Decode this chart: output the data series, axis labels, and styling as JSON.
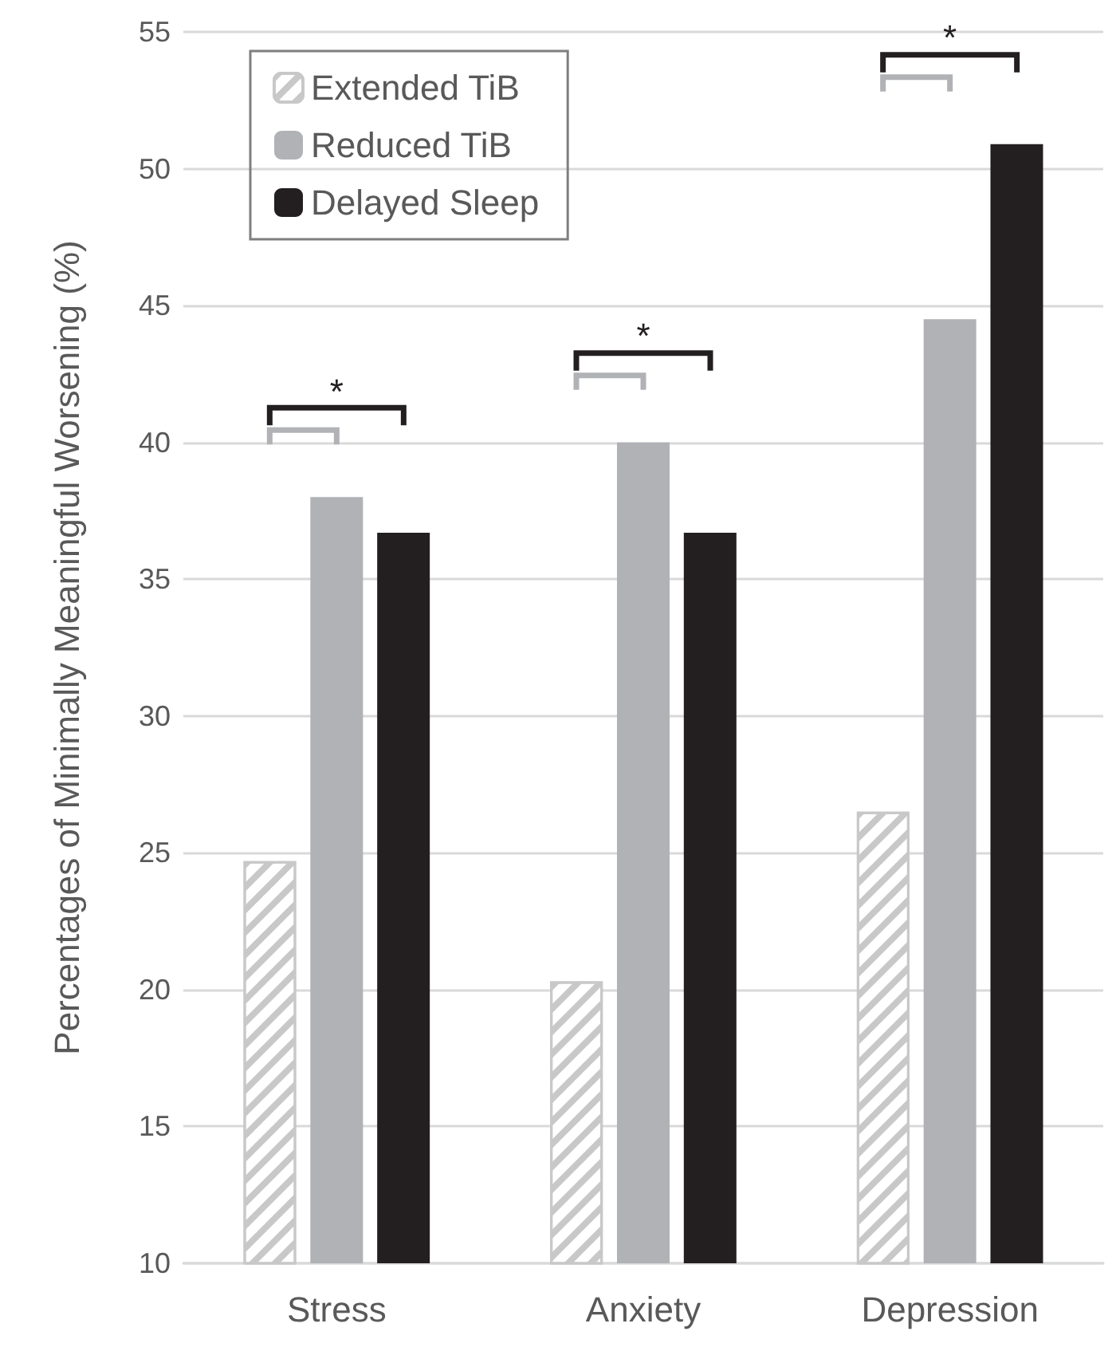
{
  "chart_data": {
    "type": "bar",
    "ylabel": "Percentages of Minimally Meaningful Worsening (%)",
    "categories": [
      "Stress",
      "Anxiety",
      "Depression"
    ],
    "series": [
      {
        "name": "Extended TiB",
        "color": "#c8c8c8",
        "values": [
          24.7,
          20.3,
          26.5
        ]
      },
      {
        "name": "Reduced TiB",
        "color": "#b1b2b6",
        "values": [
          38.0,
          40.0,
          44.5
        ]
      },
      {
        "name": "Delayed Sleep",
        "color": "#231f20",
        "values": [
          36.7,
          36.7,
          50.9
        ]
      }
    ],
    "ylim": [
      10,
      55
    ],
    "yticks": [
      10,
      15,
      20,
      25,
      30,
      35,
      40,
      45,
      50,
      55
    ],
    "grid": "y",
    "legend": "top left",
    "annotations": [
      "*",
      "*",
      "*"
    ]
  }
}
